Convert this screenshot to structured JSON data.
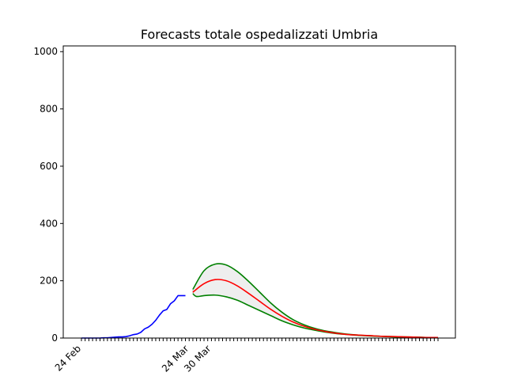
{
  "chart_data": {
    "type": "line",
    "title": "Forecasts totale ospedalizzati Umbria",
    "xlabel": "",
    "ylabel": "",
    "x_start_date": "2020-02-24",
    "x_end_date": "2020-05-30",
    "ylim": [
      0,
      1020
    ],
    "y_ticks": [
      0,
      200,
      400,
      600,
      800,
      1000
    ],
    "x_ticks": [
      {
        "date": "2020-02-24",
        "label": "24 Feb"
      },
      {
        "date": "2020-03-24",
        "label": "24 Mar"
      },
      {
        "date": "2020-03-30",
        "label": "30 Mar"
      }
    ],
    "grid": false,
    "legend": "none",
    "colors": {
      "observed": "#0000ff",
      "forecast": "#ff0000",
      "bounds": "#008000",
      "band": "#eeeeee"
    },
    "series": [
      {
        "role": "observed",
        "color": "#0000ff",
        "x": [
          "2020-02-24",
          "2020-02-25",
          "2020-02-26",
          "2020-02-27",
          "2020-02-28",
          "2020-02-29",
          "2020-03-01",
          "2020-03-02",
          "2020-03-03",
          "2020-03-04",
          "2020-03-05",
          "2020-03-06",
          "2020-03-07",
          "2020-03-08",
          "2020-03-09",
          "2020-03-10",
          "2020-03-11",
          "2020-03-12",
          "2020-03-13",
          "2020-03-14",
          "2020-03-15",
          "2020-03-16",
          "2020-03-17",
          "2020-03-18",
          "2020-03-19",
          "2020-03-20",
          "2020-03-21",
          "2020-03-22",
          "2020-03-23"
        ],
        "y": [
          0,
          0,
          0,
          0,
          0,
          0,
          1,
          1,
          2,
          3,
          4,
          4,
          5,
          8,
          12,
          14,
          20,
          32,
          38,
          48,
          62,
          80,
          95,
          100,
          120,
          130,
          148,
          148,
          148
        ]
      },
      {
        "role": "forecast",
        "color": "#ff0000",
        "x": [
          "2020-03-25",
          "2020-03-28",
          "2020-03-31",
          "2020-04-03",
          "2020-04-06",
          "2020-04-09",
          "2020-04-12",
          "2020-04-15",
          "2020-04-18",
          "2020-04-21",
          "2020-04-24",
          "2020-04-27",
          "2020-04-30",
          "2020-05-03",
          "2020-05-06",
          "2020-05-09",
          "2020-05-12",
          "2020-05-15",
          "2020-05-18",
          "2020-05-21",
          "2020-05-24",
          "2020-05-27",
          "2020-05-30"
        ],
        "y": [
          160,
          190,
          204,
          200,
          182,
          156,
          128,
          100,
          76,
          56,
          41,
          30,
          22,
          16,
          12,
          10,
          8,
          6,
          5,
          4,
          3,
          2,
          2
        ]
      },
      {
        "role": "upper",
        "color": "#008000",
        "x": [
          "2020-03-25",
          "2020-03-28",
          "2020-03-31",
          "2020-04-03",
          "2020-04-06",
          "2020-04-09",
          "2020-04-12",
          "2020-04-15",
          "2020-04-18",
          "2020-04-21",
          "2020-04-24",
          "2020-04-27",
          "2020-04-30",
          "2020-05-03",
          "2020-05-06",
          "2020-05-09",
          "2020-05-12",
          "2020-05-15",
          "2020-05-18",
          "2020-05-21",
          "2020-05-24",
          "2020-05-27",
          "2020-05-30"
        ],
        "y": [
          170,
          235,
          258,
          255,
          232,
          198,
          160,
          122,
          90,
          64,
          46,
          33,
          24,
          18,
          13,
          10,
          8,
          6,
          5,
          4,
          3,
          2,
          2
        ]
      },
      {
        "role": "lower",
        "color": "#008000",
        "x": [
          "2020-03-25",
          "2020-03-26",
          "2020-03-28",
          "2020-03-31",
          "2020-04-03",
          "2020-04-06",
          "2020-04-09",
          "2020-04-12",
          "2020-04-15",
          "2020-04-18",
          "2020-04-21",
          "2020-04-24",
          "2020-04-27",
          "2020-04-30",
          "2020-05-03",
          "2020-05-06",
          "2020-05-09",
          "2020-05-12",
          "2020-05-15",
          "2020-05-18",
          "2020-05-21",
          "2020-05-24",
          "2020-05-27",
          "2020-05-30"
        ],
        "y": [
          155,
          145,
          148,
          150,
          144,
          132,
          114,
          96,
          78,
          60,
          46,
          35,
          27,
          20,
          15,
          12,
          9,
          7,
          6,
          4,
          3,
          3,
          2,
          2
        ]
      }
    ]
  }
}
